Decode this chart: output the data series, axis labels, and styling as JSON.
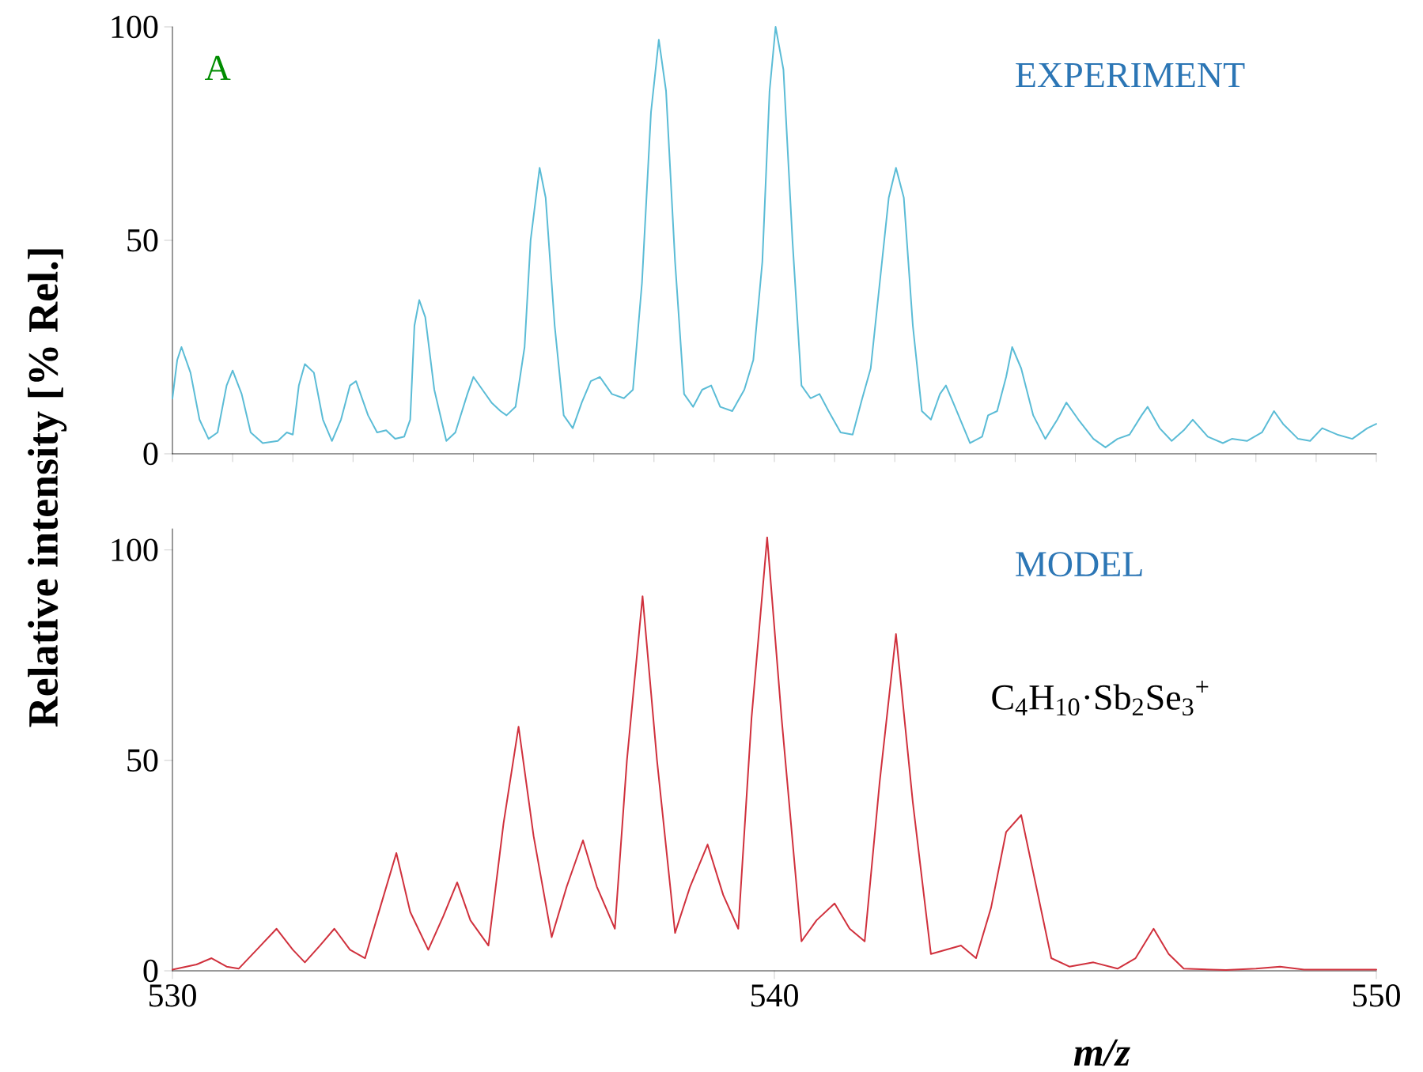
{
  "chart_data": [
    {
      "type": "line",
      "title": "EXPERIMENT",
      "annotations": [
        "A"
      ],
      "xlim": [
        530,
        550
      ],
      "ylim": [
        0,
        100
      ],
      "yticks": [
        0,
        50,
        100
      ],
      "tick_labels": "y",
      "series": [
        {
          "color": "#5bbcd6",
          "x": [
            530.0,
            530.08,
            530.15,
            530.3,
            530.45,
            530.6,
            530.75,
            530.9,
            531.0,
            531.15,
            531.3,
            531.5,
            531.75,
            531.9,
            532.0,
            532.1,
            532.2,
            532.35,
            532.5,
            532.65,
            532.8,
            532.95,
            533.05,
            533.25,
            533.4,
            533.55,
            533.7,
            533.85,
            533.95,
            534.02,
            534.1,
            534.2,
            534.35,
            534.55,
            534.7,
            534.9,
            535.0,
            535.15,
            535.3,
            535.45,
            535.55,
            535.7,
            535.85,
            535.95,
            536.1,
            536.2,
            536.35,
            536.5,
            536.65,
            536.8,
            536.95,
            537.1,
            537.3,
            537.5,
            537.65,
            537.8,
            537.95,
            538.08,
            538.2,
            538.35,
            538.5,
            538.65,
            538.8,
            538.95,
            539.1,
            539.3,
            539.5,
            539.65,
            539.8,
            539.92,
            540.02,
            540.15,
            540.3,
            540.45,
            540.6,
            540.75,
            540.9,
            541.1,
            541.3,
            541.45,
            541.6,
            541.75,
            541.9,
            542.02,
            542.15,
            542.3,
            542.45,
            542.6,
            542.75,
            542.85,
            543.0,
            543.25,
            543.45,
            543.55,
            543.7,
            543.85,
            543.95,
            544.1,
            544.3,
            544.5,
            544.7,
            544.85,
            545.05,
            545.3,
            545.5,
            545.7,
            545.9,
            546.1,
            546.2,
            546.4,
            546.6,
            546.8,
            546.95,
            547.2,
            547.45,
            547.6,
            547.85,
            548.1,
            548.3,
            548.45,
            548.7,
            548.9,
            549.1,
            549.35,
            549.6,
            549.85,
            550.0
          ],
          "values": [
            13,
            22,
            25,
            19,
            8,
            3.5,
            5,
            16,
            19.5,
            14,
            5,
            2.5,
            3,
            5,
            4.5,
            16,
            21,
            19,
            8,
            3,
            8,
            16,
            17,
            9,
            5,
            5.5,
            3.5,
            4,
            8,
            30,
            36,
            32,
            15,
            3,
            5,
            14,
            18,
            15,
            12,
            10,
            9,
            11,
            25,
            50,
            67,
            60,
            30,
            9,
            6,
            12,
            17,
            18,
            14,
            13,
            15,
            40,
            80,
            97,
            85,
            45,
            14,
            11,
            15,
            16,
            11,
            10,
            15,
            22,
            45,
            85,
            100,
            90,
            50,
            16,
            13,
            14,
            10,
            5,
            4.5,
            12.5,
            20,
            40,
            60,
            67,
            60,
            30,
            10,
            8,
            14,
            16,
            11,
            2.5,
            4,
            9,
            10,
            18,
            25,
            20,
            9,
            3.5,
            8,
            12,
            8,
            3.5,
            1.5,
            3.5,
            4.5,
            9,
            11,
            6,
            3,
            5.5,
            8,
            4,
            2.5,
            3.5,
            3,
            5,
            10,
            7,
            3.5,
            3,
            6,
            4.5,
            3.5,
            6,
            7
          ]
        }
      ]
    },
    {
      "type": "line",
      "title": "MODEL",
      "annotations": [
        "C$_{4}$H$_{10}$·Sb$_{2}$Se$_{3}$$^{+}$"
      ],
      "xlabel": "m/z",
      "ylabel": "Relative intensity [% Rel.]",
      "xlim": [
        530,
        550
      ],
      "xticks": [
        530,
        540,
        550
      ],
      "ylim": [
        0,
        105
      ],
      "yticks": [
        0,
        50,
        100
      ],
      "series": [
        {
          "color": "#d0313d",
          "x": [
            530.0,
            530.4,
            530.65,
            530.9,
            531.1,
            531.4,
            531.73,
            532.0,
            532.2,
            532.45,
            532.69,
            532.95,
            533.2,
            533.45,
            533.72,
            533.95,
            534.25,
            534.5,
            534.73,
            534.95,
            535.25,
            535.5,
            535.75,
            536.0,
            536.3,
            536.55,
            536.82,
            537.05,
            537.35,
            537.55,
            537.81,
            538.05,
            538.35,
            538.6,
            538.89,
            539.15,
            539.4,
            539.62,
            539.88,
            540.12,
            540.45,
            540.7,
            541.0,
            541.25,
            541.5,
            541.75,
            542.02,
            542.3,
            542.6,
            542.85,
            543.1,
            543.35,
            543.6,
            543.85,
            544.1,
            544.35,
            544.6,
            544.9,
            545.3,
            545.7,
            546.0,
            546.3,
            546.55,
            546.8,
            547.5,
            548.0,
            548.4,
            548.8,
            550.0
          ],
          "values": [
            0.3,
            1.5,
            3,
            1,
            0.5,
            5,
            10,
            5,
            2,
            6,
            10,
            5,
            3,
            15,
            28,
            14,
            5,
            13,
            21,
            12,
            6,
            35,
            58,
            32,
            8,
            20,
            31,
            20,
            10,
            50,
            89,
            50,
            9,
            20,
            30,
            18,
            10,
            60,
            103,
            60,
            7,
            12,
            16,
            10,
            7,
            45,
            80,
            40,
            4,
            5,
            6,
            3,
            15,
            33,
            37,
            20,
            3,
            1,
            2,
            0.5,
            3,
            10,
            4,
            0.5,
            0.2,
            0.5,
            1,
            0.3,
            0.3
          ]
        }
      ]
    }
  ]
}
